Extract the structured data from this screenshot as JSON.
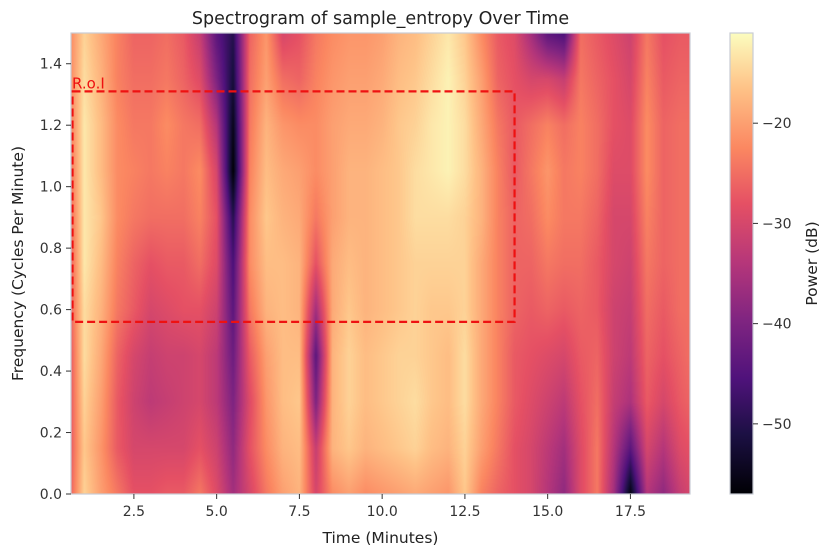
{
  "chart_data": {
    "type": "heatmap",
    "title": "Spectrogram of sample_entropy Over Time",
    "xlabel": "Time (Minutes)",
    "ylabel": "Frequency (Cycles Per Minute)",
    "colorbar_label": "Power (dB)",
    "colormap": "magma",
    "xlim": [
      0.6,
      19.3
    ],
    "ylim": [
      0.0,
      1.5
    ],
    "clim": [
      -57,
      -11
    ],
    "x_ticks": [
      2.5,
      5.0,
      7.5,
      10.0,
      12.5,
      15.0,
      17.5
    ],
    "x_tick_labels": [
      "2.5",
      "5.0",
      "7.5",
      "10.0",
      "12.5",
      "15.0",
      "17.5"
    ],
    "y_ticks": [
      0.0,
      0.2,
      0.4,
      0.6,
      0.8,
      1.0,
      1.2,
      1.4
    ],
    "y_tick_labels": [
      "0.0",
      "0.2",
      "0.4",
      "0.6",
      "0.8",
      "1.0",
      "1.2",
      "1.4"
    ],
    "colorbar_ticks": [
      -20,
      -30,
      -40,
      -50
    ],
    "colorbar_tick_labels": [
      "−20",
      "−30",
      "−40",
      "−50"
    ],
    "time_minutes": [
      0.6,
      1.0,
      1.5,
      2.0,
      2.5,
      3.0,
      3.5,
      4.0,
      4.5,
      5.0,
      5.5,
      6.0,
      6.5,
      7.0,
      7.5,
      8.0,
      8.5,
      9.0,
      9.5,
      10.0,
      10.5,
      11.0,
      11.5,
      12.0,
      12.5,
      13.0,
      13.5,
      14.0,
      14.5,
      15.0,
      15.5,
      16.0,
      16.5,
      17.0,
      17.5,
      18.0,
      18.5,
      19.0,
      19.3
    ],
    "frequency_cpm": [
      0.0,
      0.15,
      0.3,
      0.45,
      0.6,
      0.75,
      0.9,
      1.05,
      1.2,
      1.35,
      1.5
    ],
    "power_db": [
      [
        -26,
        -27,
        -27,
        -27,
        -26,
        -26,
        -25,
        -24,
        -23,
        -22,
        -22
      ],
      [
        -15,
        -16,
        -15,
        -14,
        -14,
        -13,
        -13,
        -13,
        -13,
        -14,
        -15
      ],
      [
        -20,
        -21,
        -20,
        -19,
        -18,
        -17,
        -16,
        -17,
        -17,
        -18,
        -19
      ],
      [
        -24,
        -27,
        -27,
        -26,
        -24,
        -23,
        -22,
        -22,
        -22,
        -23,
        -23
      ],
      [
        -28,
        -30,
        -31,
        -30,
        -27,
        -26,
        -24,
        -23,
        -24,
        -25,
        -26
      ],
      [
        -28,
        -30,
        -33,
        -32,
        -30,
        -28,
        -25,
        -24,
        -24,
        -25,
        -26
      ],
      [
        -27,
        -30,
        -32,
        -31,
        -29,
        -27,
        -25,
        -23,
        -22,
        -24,
        -25
      ],
      [
        -27,
        -30,
        -31,
        -31,
        -28,
        -27,
        -25,
        -24,
        -24,
        -26,
        -27
      ],
      [
        -24,
        -28,
        -30,
        -30,
        -28,
        -25,
        -23,
        -22,
        -25,
        -29,
        -32
      ],
      [
        -29,
        -31,
        -33,
        -33,
        -31,
        -29,
        -28,
        -30,
        -34,
        -40,
        -44
      ],
      [
        -36,
        -38,
        -40,
        -42,
        -44,
        -46,
        -50,
        -57,
        -55,
        -52,
        -50
      ],
      [
        -30,
        -28,
        -29,
        -27,
        -24,
        -22,
        -22,
        -23,
        -24,
        -25,
        -26
      ],
      [
        -24,
        -22,
        -21,
        -20,
        -18,
        -17,
        -16,
        -17,
        -18,
        -20,
        -21
      ],
      [
        -20,
        -18,
        -17,
        -17,
        -17,
        -17,
        -18,
        -19,
        -21,
        -25,
        -30
      ],
      [
        -18,
        -17,
        -16,
        -17,
        -18,
        -18,
        -19,
        -20,
        -22,
        -26,
        -28
      ],
      [
        -30,
        -32,
        -40,
        -44,
        -36,
        -28,
        -24,
        -22,
        -22,
        -23,
        -24
      ],
      [
        -22,
        -18,
        -18,
        -18,
        -19,
        -19,
        -20,
        -20,
        -20,
        -21,
        -22
      ],
      [
        -20,
        -16,
        -15,
        -15,
        -16,
        -17,
        -18,
        -18,
        -19,
        -20,
        -21
      ],
      [
        -22,
        -18,
        -17,
        -17,
        -18,
        -18,
        -18,
        -18,
        -19,
        -20,
        -21
      ],
      [
        -21,
        -17,
        -16,
        -16,
        -17,
        -17,
        -17,
        -17,
        -18,
        -19,
        -20
      ],
      [
        -20,
        -16,
        -15,
        -15,
        -16,
        -16,
        -16,
        -16,
        -16,
        -17,
        -18
      ],
      [
        -19,
        -15,
        -14,
        -15,
        -15,
        -15,
        -14,
        -14,
        -15,
        -16,
        -17
      ],
      [
        -20,
        -17,
        -16,
        -16,
        -16,
        -15,
        -14,
        -13,
        -13,
        -14,
        -15
      ],
      [
        -21,
        -18,
        -17,
        -17,
        -16,
        -15,
        -14,
        -12,
        -12,
        -12,
        -13
      ],
      [
        -16,
        -15,
        -14,
        -14,
        -15,
        -15,
        -15,
        -14,
        -14,
        -15,
        -16
      ],
      [
        -23,
        -20,
        -19,
        -19,
        -19,
        -19,
        -18,
        -18,
        -19,
        -20,
        -22
      ],
      [
        -26,
        -24,
        -23,
        -23,
        -23,
        -23,
        -23,
        -23,
        -24,
        -26,
        -27
      ],
      [
        -28,
        -28,
        -27,
        -27,
        -26,
        -26,
        -26,
        -27,
        -27,
        -28,
        -29
      ],
      [
        -30,
        -30,
        -29,
        -28,
        -27,
        -26,
        -25,
        -24,
        -25,
        -30,
        -36
      ],
      [
        -34,
        -33,
        -31,
        -29,
        -26,
        -24,
        -22,
        -21,
        -23,
        -30,
        -44
      ],
      [
        -38,
        -36,
        -33,
        -30,
        -27,
        -25,
        -24,
        -24,
        -25,
        -32,
        -46
      ],
      [
        -29,
        -29,
        -28,
        -27,
        -26,
        -25,
        -24,
        -23,
        -23,
        -24,
        -25
      ],
      [
        -24,
        -24,
        -25,
        -26,
        -27,
        -27,
        -26,
        -25,
        -25,
        -26,
        -27
      ],
      [
        -36,
        -34,
        -32,
        -31,
        -31,
        -30,
        -30,
        -29,
        -28,
        -28,
        -29
      ],
      [
        -56,
        -44,
        -35,
        -33,
        -32,
        -31,
        -30,
        -29,
        -29,
        -30,
        -31
      ],
      [
        -34,
        -30,
        -27,
        -26,
        -25,
        -24,
        -23,
        -22,
        -22,
        -23,
        -24
      ],
      [
        -38,
        -34,
        -30,
        -28,
        -27,
        -26,
        -26,
        -26,
        -26,
        -27,
        -28
      ],
      [
        -32,
        -29,
        -27,
        -26,
        -25,
        -25,
        -25,
        -25,
        -25,
        -26,
        -27
      ],
      [
        -30,
        -28,
        -26,
        -25,
        -25,
        -25,
        -25,
        -25,
        -25,
        -26,
        -27
      ]
    ],
    "annotations": [
      {
        "type": "rectangle",
        "label": "R.o.I",
        "color": "#ee1111",
        "style": "dashed",
        "x_range": [
          0.6,
          14.0
        ],
        "y_range": [
          0.56,
          1.31
        ]
      }
    ]
  }
}
